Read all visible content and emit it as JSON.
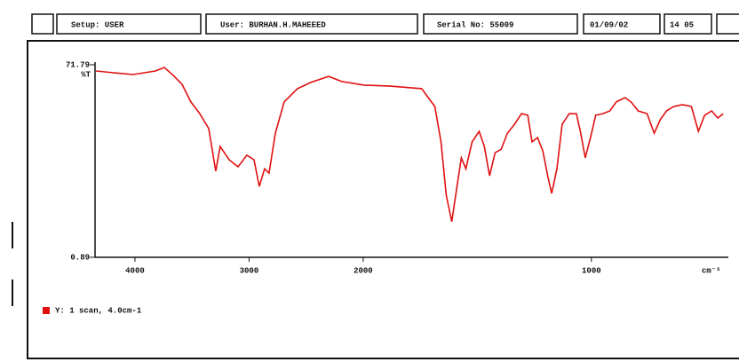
{
  "header": {
    "setup": "Setup: USER",
    "user": "User: BURHAN.H.MAHEEED",
    "serial": "Serial No: 55009",
    "date": "01/09/02",
    "time": "14 05"
  },
  "chart_data": {
    "type": "line",
    "y_label": "%T",
    "x_unit": "cm⁻¹",
    "xlim": [
      4350,
      400
    ],
    "x_scale_change": 2000,
    "xticks": [
      4000,
      3000,
      2000,
      1000
    ],
    "ylim": [
      0.89,
      71.79
    ],
    "yticks": [
      71.79,
      0.89
    ],
    "x": [
      4342,
      4171,
      4016,
      3821,
      3743,
      3665,
      3588,
      3510,
      3432,
      3354,
      3292,
      3253,
      3175,
      3097,
      3020,
      2957,
      2911,
      2864,
      2825,
      2770,
      2693,
      2576,
      2459,
      2303,
      2187,
      1996,
      1880,
      1744,
      1686,
      1659,
      1636,
      1612,
      1589,
      1570,
      1550,
      1523,
      1492,
      1469,
      1446,
      1422,
      1395,
      1368,
      1337,
      1306,
      1279,
      1260,
      1236,
      1213,
      1190,
      1174,
      1151,
      1128,
      1097,
      1066,
      1047,
      1027,
      1004,
      981,
      950,
      919,
      891,
      853,
      826,
      795,
      756,
      725,
      698,
      671,
      640,
      601,
      562,
      531,
      504,
      473,
      446,
      422
    ],
    "series": [
      {
        "name": "Y: 1 scan, 4.0cm-1",
        "color": "#e01010",
        "values": [
          69.5,
          68.8,
          68.2,
          69.5,
          70.8,
          67.9,
          64.6,
          58.1,
          53.8,
          48.3,
          32.6,
          41.7,
          36.8,
          34.2,
          38.5,
          36.8,
          27.0,
          33.5,
          31.9,
          46.6,
          58.1,
          63.0,
          65.3,
          67.5,
          65.6,
          64.3,
          63.9,
          63.0,
          56.4,
          43.4,
          23.8,
          14.0,
          27.0,
          37.5,
          33.5,
          43.4,
          47.3,
          41.7,
          30.9,
          39.4,
          40.7,
          46.6,
          49.9,
          53.8,
          53.2,
          43.4,
          45.0,
          40.1,
          30.3,
          24.4,
          33.5,
          49.9,
          53.8,
          53.8,
          46.6,
          37.5,
          45.0,
          53.2,
          53.8,
          54.8,
          58.1,
          59.7,
          58.1,
          54.8,
          53.8,
          46.6,
          51.6,
          54.8,
          56.4,
          57.1,
          56.4,
          47.3,
          53.2,
          54.8,
          52.2,
          53.8
        ]
      }
    ]
  }
}
